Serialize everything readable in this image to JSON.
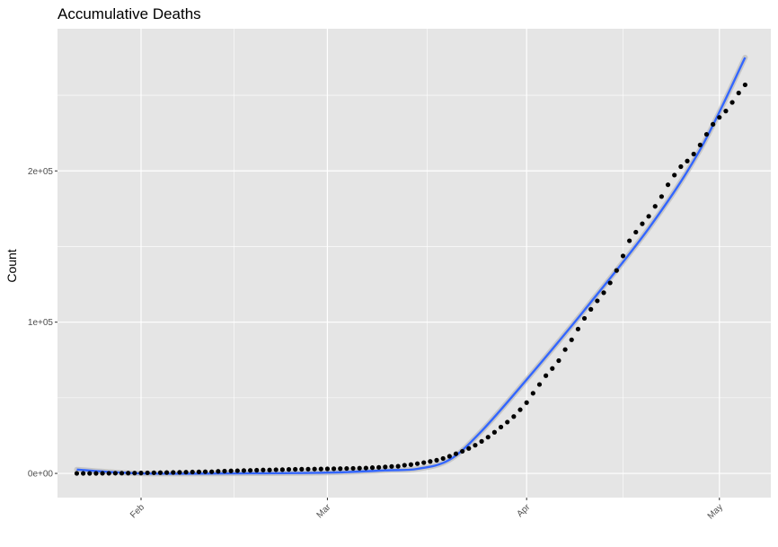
{
  "chart_data": {
    "type": "scatter",
    "title": "Accumulative Deaths",
    "xlabel": "",
    "ylabel": "Count",
    "x_start": "2020-01-22",
    "x_ticks": [
      {
        "label": "Feb",
        "date": "2020-02-01"
      },
      {
        "label": "Mar",
        "date": "2020-03-01"
      },
      {
        "label": "Apr",
        "date": "2020-04-01"
      },
      {
        "label": "May",
        "date": "2020-05-01"
      }
    ],
    "xlim": [
      "2020-01-19",
      "2020-05-09"
    ],
    "y_ticks": [
      {
        "label": "0e+00",
        "value": 0
      },
      {
        "label": "1e+05",
        "value": 100000
      },
      {
        "label": "2e+05",
        "value": 200000
      }
    ],
    "ylim": [
      -16000,
      294000
    ],
    "grid": true,
    "colors": {
      "panel": "#e5e5e5",
      "grid": "#ffffff",
      "points": "#000000",
      "smooth_line": "#3366ff",
      "smooth_band": "#b3b3b3"
    },
    "series": [
      {
        "type": "scatter",
        "values": [
          17,
          18,
          26,
          42,
          56,
          82,
          131,
          133,
          171,
          213,
          259,
          362,
          426,
          492,
          564,
          634,
          719,
          806,
          906,
          1013,
          1113,
          1118,
          1371,
          1523,
          1666,
          1770,
          1868,
          2007,
          2122,
          2247,
          2251,
          2458,
          2469,
          2629,
          2708,
          2770,
          2814,
          2872,
          2941,
          2996,
          3085,
          3160,
          3254,
          3348,
          3460,
          3558,
          3802,
          3988,
          4262,
          4615,
          4720,
          5404,
          5819,
          6440,
          7126,
          7905,
          8733,
          9867,
          11299,
          12973,
          14623,
          16497,
          18615,
          21181,
          23970,
          27198,
          30652,
          33925,
          37582,
          42107,
          46809,
          52983,
          58787,
          64606,
          69374,
          74565,
          81865,
          88338,
          95455,
          102525,
          108502,
          114090,
          119482,
          125983,
          134176,
          143800,
          153822,
          159510,
          165044,
          169987,
          176583,
          183066,
          190858,
          197245,
          202846,
          206544,
          211167,
          217153,
          224172,
          230823,
          235395,
          239604,
          245300,
          251545,
          256926
        ],
        "note": ""
      },
      {
        "type": "line",
        "name": "",
        "values": [
          2500,
          0,
          0,
          500,
          2000,
          3000,
          9000,
          28000,
          62000,
          108000,
          162000,
          214000,
          275000
        ],
        "x": [
          "2020-01-22",
          "2020-02-01",
          "2020-02-15",
          "2020-03-01",
          "2020-03-10",
          "2020-03-15",
          "2020-03-20",
          "2020-03-25",
          "2020-04-01",
          "2020-04-10",
          "2020-04-20",
          "2020-04-28",
          "2020-05-05"
        ]
      }
    ]
  }
}
